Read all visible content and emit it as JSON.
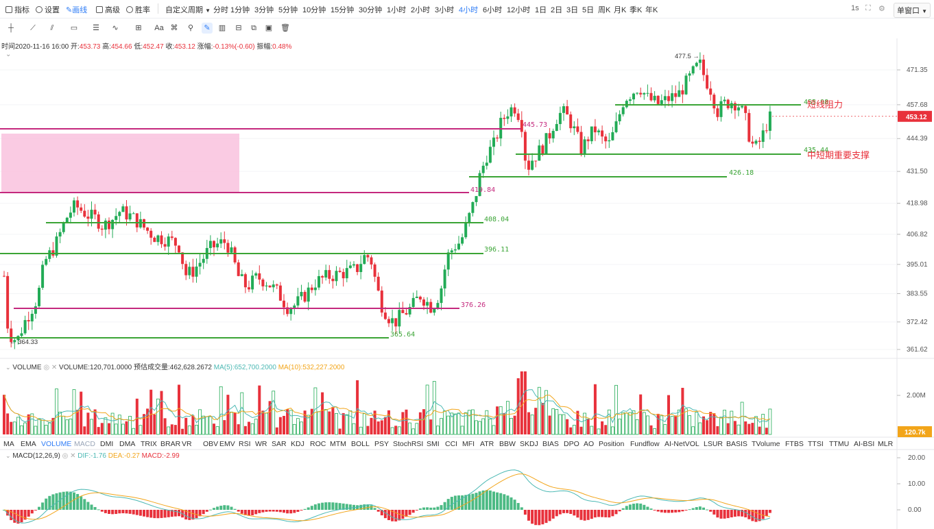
{
  "topbar": {
    "indicator_label": "指标",
    "settings_label": "设置",
    "draw_label": "画线",
    "advanced_label": "高级",
    "winrate_label": "胜率",
    "custom_period_label": "自定义周期",
    "periods": [
      "分时",
      "1分钟",
      "3分钟",
      "5分钟",
      "10分钟",
      "15分钟",
      "30分钟",
      "1小时",
      "2小时",
      "3小时",
      "4小时",
      "6小时",
      "12小时",
      "1日",
      "2日",
      "3日",
      "5日",
      "周K",
      "月K",
      "季K",
      "年K"
    ],
    "active_period": "4小时",
    "refresh_interval": "1s",
    "window_mode": "单窗口"
  },
  "drawing_tools": [
    "crosshair-tool",
    "trend-line-tool",
    "parallel-line-tool",
    "rectangle-tool",
    "fib-tool",
    "wave-tool",
    "measure-tool",
    "text-tool",
    "magnet-tool",
    "eraser-tool",
    "brush-tool",
    "pen-tool",
    "bars-tool",
    "lock-tool",
    "copy-tool",
    "delete-tool"
  ],
  "info": {
    "time_label": "时间",
    "time": "2020-11-16 16:00",
    "open_label": "开:",
    "open": "453.73",
    "high_label": "高:",
    "high": "454.66",
    "low_label": "低:",
    "low": "452.47",
    "close_label": "收:",
    "close": "453.12",
    "change_label": "涨幅:",
    "change": "-0.13%(-0.60)",
    "amplitude_label": "振幅:",
    "amplitude": "0.48%"
  },
  "price_axis": {
    "ticks": [
      "471.35",
      "457.68",
      "444.39",
      "431.50",
      "418.98",
      "406.82",
      "395.01",
      "383.55",
      "372.42",
      "361.62"
    ],
    "current_price": "453.12"
  },
  "annotations": {
    "high_marker": "477.5",
    "low_marker": "364.33",
    "levels": [
      "455.98",
      "445.73",
      "435.44",
      "426.18",
      "419.84",
      "408.04",
      "396.11",
      "376.26",
      "365.64"
    ],
    "resistance_label": "短线阻力",
    "support_label": "中短期重要支撑"
  },
  "volume": {
    "title": "VOLUME",
    "value_label": "VOLUME:120,701.0000",
    "estimate_label": "预估成交量:462,628.2672",
    "ma5_label": "MA(5):652,700.2000",
    "ma10_label": "MA(10):532,227.2000",
    "axis_tick": "2.00M",
    "current_badge": "120.7k"
  },
  "indicator_tabs": [
    "MA",
    "EMA",
    "VOLUME",
    "MACD",
    "DMI",
    "DMA",
    "TRIX",
    "BRAR",
    "VR",
    "OBV",
    "EMV",
    "RSI",
    "WR",
    "SAR",
    "KDJ",
    "ROC",
    "MTM",
    "BOLL",
    "PSY",
    "StochRSI",
    "SMI",
    "CCI",
    "MFI",
    "ATR",
    "BBW",
    "SKDJ",
    "BIAS",
    "DPO",
    "AO",
    "Position",
    "Fundflow",
    "AI-NetVOL",
    "LSUR",
    "BASIS",
    "TVolume",
    "FTBS",
    "TTSI",
    "TTMU",
    "AI-BSI",
    "MLR"
  ],
  "active_indicators": [
    "VOLUME",
    "MACD"
  ],
  "macd": {
    "title": "MACD(12,26,9)",
    "dif_label": "DIF:-1.76",
    "dea_label": "DEA:-0.27",
    "macd_label": "MACD:-2.99",
    "axis_ticks": [
      "20.00",
      "10.00",
      "0.00"
    ]
  },
  "colors": {
    "up": "#22ab56",
    "down": "#e8313b",
    "accent": "#2e7cf6",
    "level_green": "#3aa435",
    "level_magenta": "#c4287d",
    "zone_pink": "#f9c2de"
  }
}
